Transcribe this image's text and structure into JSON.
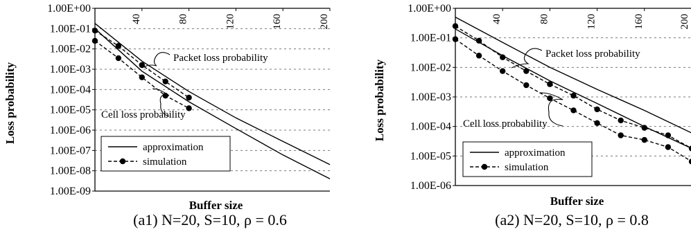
{
  "chart_data": [
    {
      "type": "line",
      "caption": "(a1) N=20, S=10, ρ = 0.6",
      "xlabel": "Buffer size",
      "ylabel": "Loss probability",
      "xlim": [
        0,
        200
      ],
      "ylim": [
        1e-09,
        1
      ],
      "y_scale": "log",
      "y_tick_values": [
        1,
        0.1,
        0.01,
        0.001,
        0.0001,
        1e-05,
        1e-06,
        1e-07,
        1e-08,
        1e-09
      ],
      "y_tick_labels": [
        "1.00E+00",
        "1.00E-01",
        "1.00E-02",
        "1.00E-03",
        "1.00E-04",
        "1.00E-05",
        "1.00E-06",
        "1.00E-07",
        "1.00E-08",
        "1.00E-09"
      ],
      "x_tick_values": [
        40,
        80,
        120,
        160,
        200
      ],
      "x_tick_labels": [
        "40",
        "80",
        "120",
        "160",
        "200"
      ],
      "grid": "horizontal dashed",
      "legend": {
        "placement": "lower-left",
        "entries": [
          {
            "label": "approximation",
            "style": "solid"
          },
          {
            "label": "simulation",
            "style": "dashed-dot"
          }
        ]
      },
      "annotations": [
        "Packet loss probability",
        "Cell loss probability"
      ],
      "series": [
        {
          "legend": "approximation",
          "curve": "packet",
          "style": "solid",
          "markers": false,
          "x": [
            0,
            40,
            80,
            120,
            160,
            200
          ],
          "y": [
            0.18,
            0.0025,
            8e-05,
            4e-06,
            2.8e-07,
            2e-08
          ]
        },
        {
          "legend": "approximation",
          "curve": "cell",
          "style": "solid",
          "markers": false,
          "x": [
            0,
            40,
            80,
            120,
            160,
            200
          ],
          "y": [
            0.1,
            0.0008,
            2.5e-05,
            1.2e-06,
            6e-08,
            4e-09
          ]
        },
        {
          "legend": "simulation",
          "curve": "packet",
          "style": "dashed",
          "markers": true,
          "x": [
            0,
            20,
            40,
            60,
            80
          ],
          "y": [
            0.08,
            0.014,
            0.0016,
            0.00025,
            4e-05
          ]
        },
        {
          "legend": "simulation",
          "curve": "cell",
          "style": "dashed",
          "markers": true,
          "x": [
            0,
            20,
            40,
            60,
            80
          ],
          "y": [
            0.025,
            0.0035,
            0.0004,
            5e-05,
            1.2e-05
          ]
        }
      ]
    },
    {
      "type": "line",
      "caption": "(a2) N=20, S=10, ρ = 0.8",
      "xlabel": "Buffer size",
      "ylabel": "Loss probability",
      "xlim": [
        0,
        200
      ],
      "ylim": [
        1e-06,
        1
      ],
      "y_scale": "log",
      "y_tick_values": [
        1,
        0.1,
        0.01,
        0.001,
        0.0001,
        1e-05,
        1e-06
      ],
      "y_tick_labels": [
        "1.00E+00",
        "1.00E-01",
        "1.00E-02",
        "1.00E-03",
        "1.00E-04",
        "1.00E-05",
        "1.00E-06"
      ],
      "x_tick_values": [
        40,
        80,
        120,
        160,
        200
      ],
      "x_tick_labels": [
        "40",
        "80",
        "120",
        "160",
        "200"
      ],
      "grid": "horizontal dashed",
      "legend": {
        "placement": "lower-left",
        "entries": [
          {
            "label": "approximation",
            "style": "solid"
          },
          {
            "label": "simulation",
            "style": "dashed-dot"
          }
        ]
      },
      "annotations": [
        "Packet loss probability",
        "Cell loss probability"
      ],
      "series": [
        {
          "legend": "approximation",
          "curve": "packet",
          "style": "solid",
          "markers": false,
          "x": [
            0,
            40,
            80,
            120,
            160,
            200
          ],
          "y": [
            0.5,
            0.07,
            0.01,
            0.0018,
            0.00035,
            6e-05
          ]
        },
        {
          "legend": "approximation",
          "curve": "cell",
          "style": "solid",
          "markers": false,
          "x": [
            0,
            40,
            80,
            120,
            160,
            200
          ],
          "y": [
            0.2,
            0.025,
            0.0035,
            0.0006,
            0.0001,
            1.8e-05
          ]
        },
        {
          "legend": "simulation",
          "curve": "packet",
          "style": "dashed",
          "markers": true,
          "x": [
            0,
            20,
            40,
            60,
            80,
            100,
            120,
            140,
            160,
            180,
            200
          ],
          "y": [
            0.25,
            0.08,
            0.022,
            0.0075,
            0.0027,
            0.0011,
            0.00038,
            0.00016,
            9e-05,
            5e-05,
            1.8e-05
          ]
        },
        {
          "legend": "simulation",
          "curve": "cell",
          "style": "dashed",
          "markers": true,
          "x": [
            0,
            20,
            40,
            60,
            80,
            100,
            120,
            140,
            160,
            180,
            200
          ],
          "y": [
            0.09,
            0.025,
            0.0075,
            0.0025,
            0.0009,
            0.00035,
            0.00013,
            5e-05,
            3.5e-05,
            2e-05,
            6.5e-06
          ]
        }
      ]
    }
  ]
}
